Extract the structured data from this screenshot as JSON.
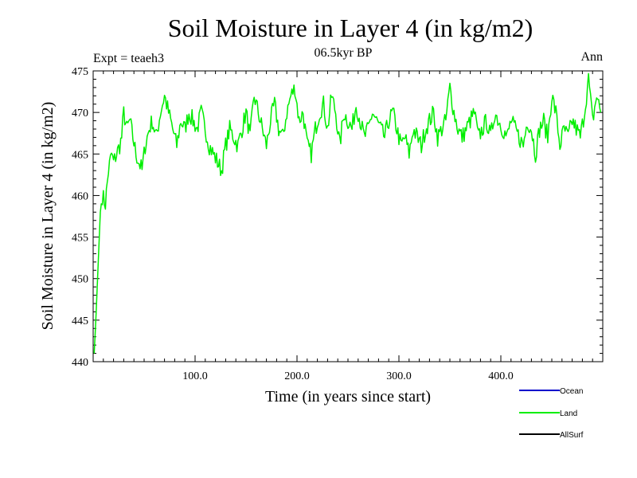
{
  "chart_data": {
    "type": "line",
    "title": "Soil Moisture in Layer 4 (in kg/m2)",
    "subtitle": "06.5kyr BP",
    "left_label": "Expt = teaeh3",
    "right_label": "Ann",
    "xlabel": "Time (in years since start)",
    "ylabel": "Soil Moisture in Layer 4 (in kg/m2)",
    "xlim": [
      0,
      500
    ],
    "ylim": [
      440,
      475
    ],
    "x_ticks": [
      100,
      200,
      300,
      400
    ],
    "x_tick_labels": [
      "100.0",
      "200.0",
      "300.0",
      "400.0"
    ],
    "y_ticks": [
      440,
      445,
      450,
      455,
      460,
      465,
      470,
      475
    ],
    "y_tick_labels": [
      "440",
      "445",
      "450",
      "455",
      "460",
      "465",
      "470",
      "475"
    ],
    "legend": [
      {
        "name": "Ocean",
        "color": "#0000cc"
      },
      {
        "name": "Land",
        "color": "#00ee00"
      },
      {
        "name": "AllSurf",
        "color": "#000000"
      }
    ],
    "legend_position": "bottom-right",
    "series": [
      {
        "name": "Land",
        "color": "#00ee00",
        "x": [
          1,
          3,
          5,
          7,
          9,
          12,
          15,
          18,
          20,
          23,
          26,
          28,
          30,
          33,
          36,
          39,
          42,
          45,
          48,
          51,
          55,
          58,
          62,
          66,
          70,
          74,
          78,
          82,
          86,
          90,
          94,
          98,
          102,
          106,
          110,
          114,
          118,
          122,
          126,
          130,
          134,
          138,
          142,
          146,
          150,
          154,
          158,
          162,
          166,
          170,
          174,
          178,
          182,
          186,
          190,
          194,
          198,
          202,
          206,
          210,
          214,
          218,
          222,
          226,
          230,
          234,
          238,
          242,
          246,
          250,
          254,
          258,
          262,
          266,
          270,
          274,
          278,
          282,
          286,
          290,
          294,
          298,
          302,
          306,
          310,
          314,
          318,
          322,
          326,
          330,
          334,
          338,
          342,
          346,
          350,
          354,
          358,
          362,
          366,
          370,
          374,
          378,
          382,
          386,
          390,
          394,
          398,
          402,
          406,
          410,
          414,
          418,
          422,
          426,
          430,
          434,
          438,
          442,
          446,
          450,
          454,
          458,
          462,
          466,
          470,
          474,
          478,
          482,
          486,
          490,
          494,
          498
        ],
        "values": [
          441,
          446,
          452,
          458,
          460,
          459,
          463,
          465,
          464,
          465,
          466,
          467,
          470,
          468,
          469,
          467,
          465,
          464,
          463,
          466,
          468,
          469,
          467,
          470,
          472,
          470,
          468,
          466,
          469,
          468,
          470,
          469,
          468,
          470,
          468,
          466,
          465,
          464,
          463,
          466,
          468,
          467,
          466,
          468,
          470,
          467,
          472,
          470,
          468,
          466,
          469,
          471,
          468,
          467,
          470,
          472,
          473,
          469,
          470,
          466,
          465,
          468,
          470,
          471,
          468,
          472,
          470,
          466,
          470,
          469,
          468,
          471,
          469,
          467,
          468,
          470,
          469,
          468,
          467,
          469,
          470,
          468,
          466,
          467,
          465,
          468,
          467,
          466,
          468,
          469,
          470,
          467,
          468,
          469,
          473,
          470,
          468,
          467,
          468,
          469,
          470,
          467,
          468,
          469,
          467,
          470,
          469,
          468,
          467,
          469,
          468,
          467,
          466,
          469,
          468,
          465,
          468,
          469,
          467,
          472,
          470,
          466,
          468,
          467,
          469,
          468,
          467,
          470,
          474,
          469,
          472,
          470
        ]
      }
    ]
  }
}
